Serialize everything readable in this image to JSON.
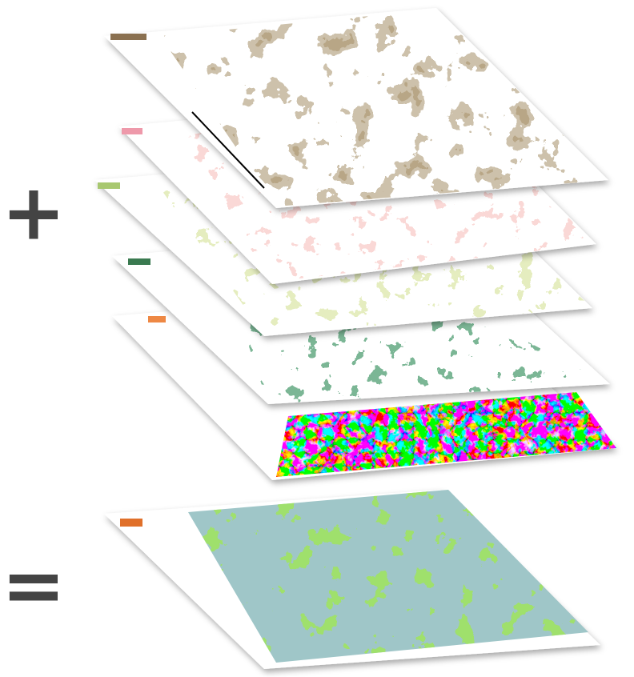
{
  "operators": {
    "plus": "+",
    "equals": "="
  }
}
